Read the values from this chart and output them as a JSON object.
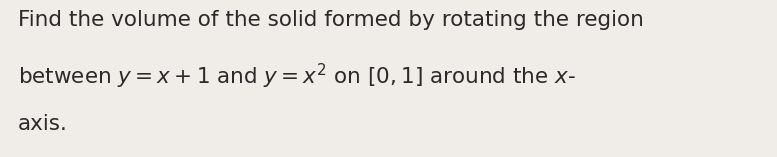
{
  "background_color": "#f0ede8",
  "text_color": "#2a2a2a",
  "line1": "Find the volume of the solid formed by rotating the region",
  "line2": "between $y=x+1$ and $y=x^2$ on $[0,1]$ around the $x$-",
  "line3": "axis.",
  "fontsize": 15.5,
  "figsize": [
    7.77,
    1.57
  ],
  "dpi": 100
}
